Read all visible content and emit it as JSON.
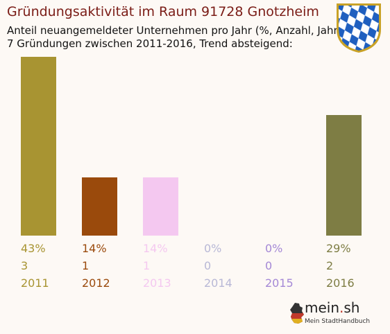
{
  "chart_data": {
    "type": "bar",
    "title": "Gründungsaktivität im Raum 91728 Gnotzheim",
    "subtitle_line1": "Anteil neuangemeldeter Unternehmen pro Jahr (%, Anzahl, Jahr)",
    "subtitle_line2": "7 Gründungen zwischen 2011-2016, Trend absteigend:",
    "categories": [
      "2011",
      "2012",
      "2013",
      "2014",
      "2015",
      "2016"
    ],
    "percent_labels": [
      "43%",
      "14%",
      "14%",
      "0%",
      "0%",
      "29%"
    ],
    "counts": [
      3,
      1,
      1,
      0,
      0,
      2
    ],
    "colors": [
      "#a89432",
      "#9a4a0c",
      "#f4c8f0",
      "#b8b8d6",
      "#a488d6",
      "#7e7d44"
    ],
    "ylim": [
      0,
      43
    ]
  },
  "logo": {
    "name_main": "mein",
    "name_dot": ".",
    "name_suffix": "sh",
    "tagline": "Mein StadtHandbuch"
  }
}
